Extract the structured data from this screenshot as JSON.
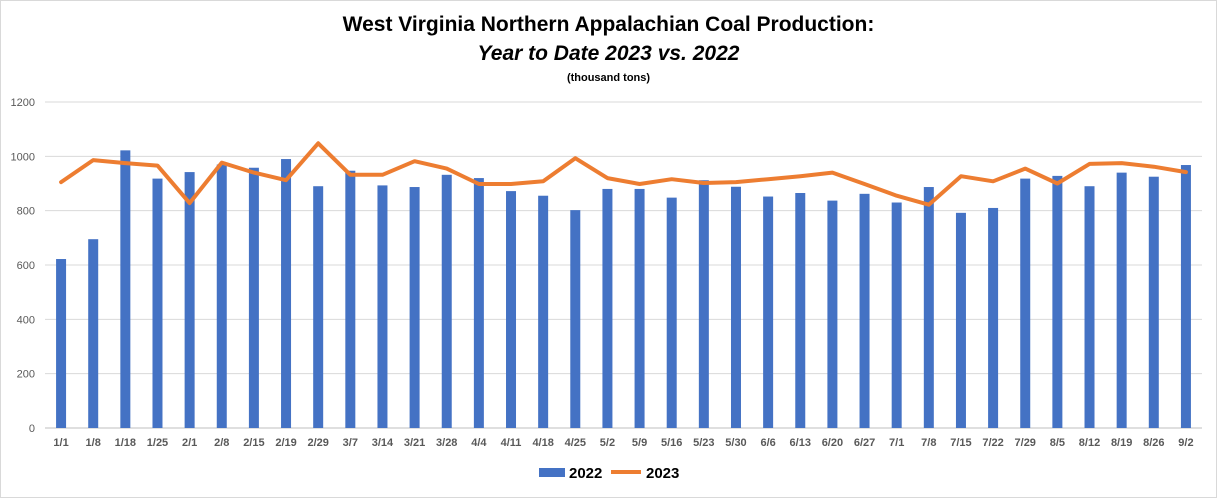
{
  "chart_data": {
    "type": "bar",
    "title": "West Virginia Northern Appalachian Coal Production:",
    "subtitle": "Year to Date 2023 vs. 2022",
    "unit_note": "(thousand tons)",
    "categories": [
      "1/1",
      "1/8",
      "1/18",
      "1/25",
      "2/1",
      "2/8",
      "2/15",
      "2/19",
      "2/29",
      "3/7",
      "3/14",
      "3/21",
      "3/28",
      "4/4",
      "4/11",
      "4/18",
      "4/25",
      "5/2",
      "5/9",
      "5/16",
      "5/23",
      "5/30",
      "6/6",
      "6/13",
      "6/20",
      "6/27",
      "7/1",
      "7/8",
      "7/15",
      "7/22",
      "7/29",
      "8/5",
      "8/12",
      "8/19",
      "8/26",
      "9/2"
    ],
    "ylim": [
      0,
      1200
    ],
    "yticks": [
      0,
      200,
      400,
      600,
      800,
      1000,
      1200
    ],
    "grid": true,
    "legend_position": "bottom",
    "series": [
      {
        "name": "2022",
        "type": "bar",
        "color": "#4472C4",
        "values": [
          622,
          695,
          1022,
          918,
          942,
          970,
          958,
          990,
          890,
          947,
          893,
          887,
          932,
          920,
          872,
          855,
          802,
          880,
          880,
          848,
          912,
          888,
          852,
          865,
          837,
          862,
          830,
          887,
          792,
          810,
          918,
          928,
          890,
          940,
          925,
          968
        ]
      },
      {
        "name": "2023",
        "type": "line",
        "color": "#ED7D31",
        "values": [
          905,
          986,
          975,
          966,
          828,
          977,
          940,
          912,
          1048,
          932,
          932,
          982,
          955,
          898,
          898,
          908,
          993,
          920,
          898,
          916,
          902,
          905,
          916,
          927,
          940,
          898,
          855,
          822,
          927,
          908,
          955,
          900,
          972,
          975,
          962,
          942
        ]
      }
    ]
  }
}
